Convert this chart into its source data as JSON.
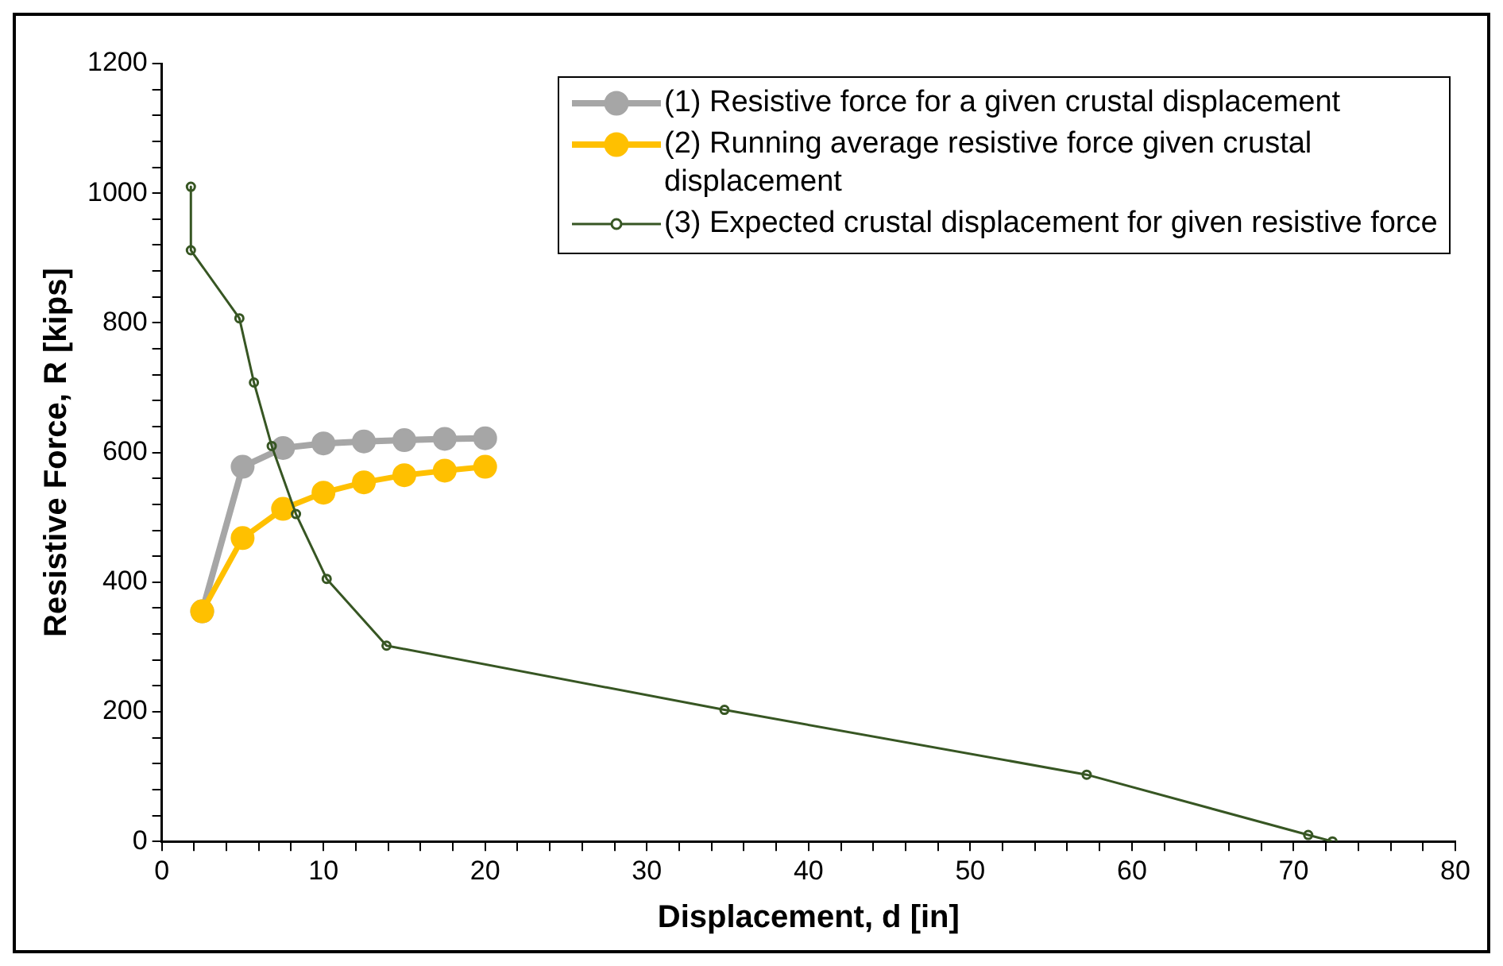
{
  "chart_data": {
    "type": "line",
    "xlabel": "Displacement, d [in]",
    "ylabel": "Resistive Force, R [kips]",
    "xlim": [
      0,
      80
    ],
    "xticks": [
      0,
      {
        "value": 2,
        "label": null
      },
      {
        "value": 4,
        "label": null
      },
      {
        "value": 6,
        "label": null
      },
      {
        "value": 8,
        "label": null
      },
      10,
      {
        "value": 12,
        "label": null
      },
      {
        "value": 14,
        "label": null
      },
      {
        "value": 16,
        "label": null
      },
      {
        "value": 18,
        "label": null
      },
      20,
      {
        "value": 22,
        "label": null
      },
      {
        "value": 24,
        "label": null
      },
      {
        "value": 26,
        "label": null
      },
      {
        "value": 28,
        "label": null
      },
      30,
      {
        "value": 32,
        "label": null
      },
      {
        "value": 34,
        "label": null
      },
      {
        "value": 36,
        "label": null
      },
      {
        "value": 38,
        "label": null
      },
      40,
      {
        "value": 42,
        "label": null
      },
      {
        "value": 44,
        "label": null
      },
      {
        "value": 46,
        "label": null
      },
      {
        "value": 48,
        "label": null
      },
      50,
      {
        "value": 52,
        "label": null
      },
      {
        "value": 54,
        "label": null
      },
      {
        "value": 56,
        "label": null
      },
      {
        "value": 58,
        "label": null
      },
      60,
      {
        "value": 62,
        "label": null
      },
      {
        "value": 64,
        "label": null
      },
      {
        "value": 66,
        "label": null
      },
      {
        "value": 68,
        "label": null
      },
      70,
      {
        "value": 72,
        "label": null
      },
      {
        "value": 74,
        "label": null
      },
      {
        "value": 76,
        "label": null
      },
      {
        "value": 78,
        "label": null
      },
      80
    ],
    "ylim": [
      0,
      1200
    ],
    "yticks": [
      0,
      {
        "value": 40,
        "label": null
      },
      {
        "value": 80,
        "label": null
      },
      {
        "value": 120,
        "label": null
      },
      {
        "value": 160,
        "label": null
      },
      200,
      {
        "value": 240,
        "label": null
      },
      {
        "value": 280,
        "label": null
      },
      {
        "value": 320,
        "label": null
      },
      {
        "value": 360,
        "label": null
      },
      400,
      {
        "value": 440,
        "label": null
      },
      {
        "value": 480,
        "label": null
      },
      {
        "value": 520,
        "label": null
      },
      {
        "value": 560,
        "label": null
      },
      600,
      {
        "value": 640,
        "label": null
      },
      {
        "value": 680,
        "label": null
      },
      {
        "value": 720,
        "label": null
      },
      {
        "value": 760,
        "label": null
      },
      800,
      {
        "value": 840,
        "label": null
      },
      {
        "value": 880,
        "label": null
      },
      {
        "value": 920,
        "label": null
      },
      {
        "value": 960,
        "label": null
      },
      1000,
      {
        "value": 1040,
        "label": null
      },
      {
        "value": 1080,
        "label": null
      },
      {
        "value": 1120,
        "label": null
      },
      {
        "value": 1160,
        "label": null
      },
      1200
    ],
    "grid": false,
    "legend": "top right",
    "marker": "circle",
    "series": [
      {
        "name": "(1) Resistive force for a given crustal displacement",
        "color": "#a6a6a6",
        "x": [
          2.5,
          5,
          7.5,
          10,
          12.5,
          15,
          17.5,
          20
        ],
        "values": [
          355,
          578,
          607,
          614,
          617,
          619,
          621,
          622
        ]
      },
      {
        "name": "(2) Running average resistive force given crustal displacement",
        "color": "#ffc000",
        "x": [
          2.5,
          5,
          7.5,
          10,
          12.5,
          15,
          17.5,
          20
        ],
        "values": [
          355,
          468,
          513,
          538,
          554,
          565,
          572,
          578
        ]
      },
      {
        "name": "(3) Expected crustal displacement for given resistive force",
        "color": "#375623",
        "x": [
          1.8,
          1.8,
          4.8,
          5.7,
          6.8,
          8.3,
          10.2,
          13.9,
          34.8,
          57.2,
          70.9,
          72.4
        ],
        "values": [
          1010,
          912,
          807,
          708,
          610,
          505,
          405,
          302,
          203,
          103,
          10,
          0
        ]
      }
    ]
  }
}
